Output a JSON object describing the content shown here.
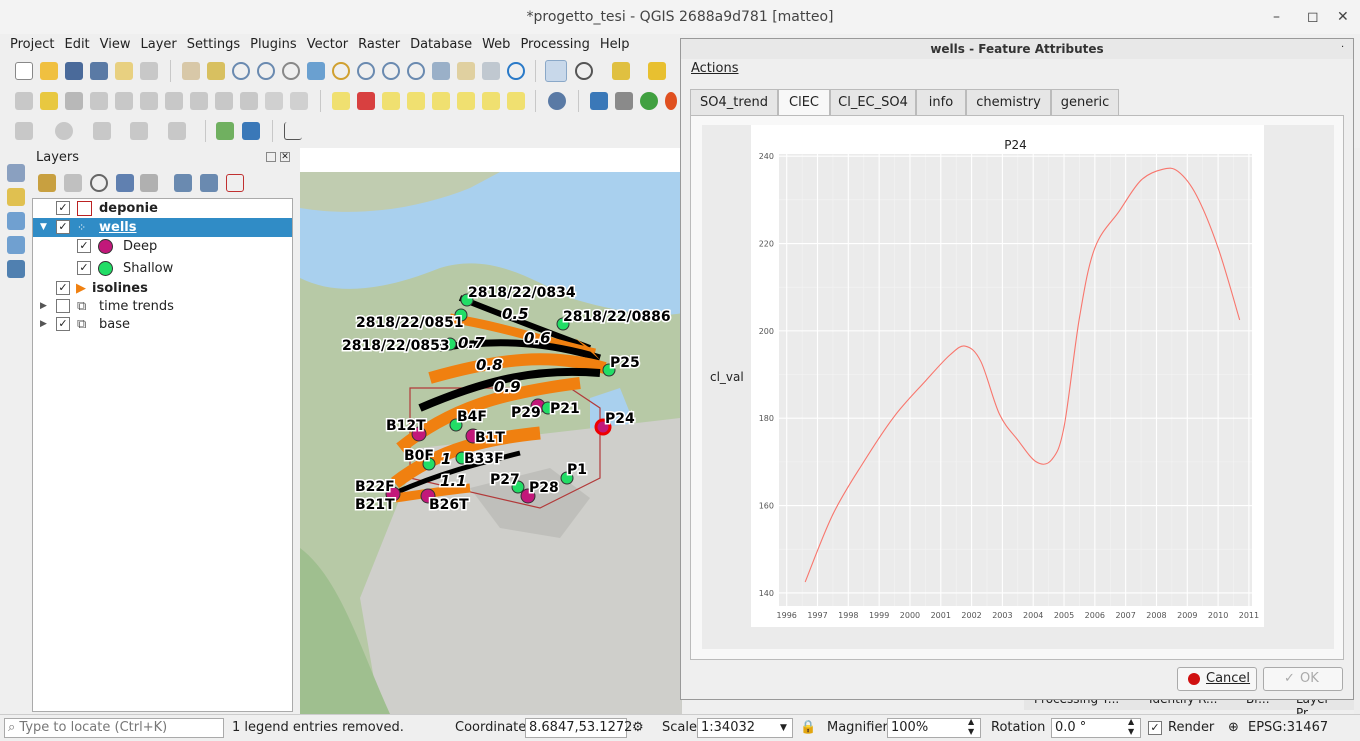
{
  "window": {
    "title": "*progetto_tesi - QGIS 2688a9d781 [matteo]",
    "min": "–",
    "max": "◻",
    "close": "✕"
  },
  "menubar": [
    "Project",
    "Edit",
    "View",
    "Layer",
    "Settings",
    "Plugins",
    "Vector",
    "Raster",
    "Database",
    "Web",
    "Processing",
    "Help"
  ],
  "layers_panel": {
    "title": "Layers",
    "items": [
      {
        "label": "deponie",
        "checked": "✓"
      },
      {
        "label": "wells",
        "checked": "✓"
      },
      {
        "label": "Deep",
        "checked": "✓",
        "color": "#c2187a"
      },
      {
        "label": "Shallow",
        "checked": "✓",
        "color": "#22dd66"
      },
      {
        "label": "isolines",
        "checked": "✓"
      },
      {
        "label": "time trends",
        "checked": ""
      },
      {
        "label": "base",
        "checked": "✓"
      }
    ]
  },
  "map": {
    "wells": [
      {
        "label": "2818/22/0834"
      },
      {
        "label": "2818/22/0851"
      },
      {
        "label": "2818/22/0853"
      },
      {
        "label": "2818/22/0886"
      },
      {
        "label": "P25"
      },
      {
        "label": "P29"
      },
      {
        "label": "P21"
      },
      {
        "label": "P24"
      },
      {
        "label": "B12T"
      },
      {
        "label": "B4F"
      },
      {
        "label": "B1T"
      },
      {
        "label": "B0F"
      },
      {
        "label": "B33F"
      },
      {
        "label": "B22F"
      },
      {
        "label": "B21T"
      },
      {
        "label": "B26T"
      },
      {
        "label": "P27"
      },
      {
        "label": "P28"
      },
      {
        "label": "P1"
      }
    ],
    "isolines": [
      "0.5",
      "0.6",
      "0.7",
      "0.8",
      "0.9",
      "1",
      "1.1"
    ]
  },
  "dialog": {
    "title": "wells - Feature Attributes",
    "actions": "Actions",
    "tabs": [
      "SO4_trend",
      "ClEC",
      "Cl_EC_SO4",
      "info",
      "chemistry",
      "generic"
    ],
    "selected_tab": "ClEC",
    "cancel": "Cancel",
    "ok": "OK"
  },
  "chart_data": {
    "type": "line",
    "title": "P24",
    "xlabel": "",
    "ylabel": "cl_val",
    "x_ticks": [
      "1996",
      "1997",
      "1998",
      "1999",
      "2000",
      "2001",
      "2002",
      "2003",
      "2004",
      "2005",
      "2006",
      "2007",
      "2008",
      "2009",
      "2010",
      "2011"
    ],
    "y_ticks": [
      "140",
      "160",
      "180",
      "200",
      "220",
      "240"
    ],
    "xlim": [
      1995.75,
      2011.1
    ],
    "ylim": [
      137,
      240.5
    ],
    "series": [
      {
        "name": "P24",
        "color": "#f8766d",
        "x": [
          1996.6,
          1997.5,
          1998.5,
          1999.5,
          2000.5,
          2001.3,
          2001.8,
          2002.3,
          2002.9,
          2003.5,
          2004.1,
          2004.6,
          2005.0,
          2005.5,
          2006.0,
          2006.8,
          2007.5,
          2008.2,
          2008.7,
          2009.3,
          2010.0,
          2010.7
        ],
        "y": [
          142.5,
          158,
          170,
          180.5,
          188.5,
          194.5,
          196.5,
          193,
          181,
          175,
          170,
          170.5,
          178,
          203,
          219,
          227.5,
          234.5,
          237,
          236.5,
          231,
          219,
          202.5
        ]
      }
    ]
  },
  "statusbar": {
    "locate_placeholder": "Type to locate (Ctrl+K)",
    "message": "1 legend entries removed.",
    "coordinate_label": "Coordinate",
    "coordinate_value": "8.6847,53.1272",
    "scale_label": "Scale",
    "scale_value": "1:34032",
    "magnifier_label": "Magnifier",
    "magnifier_value": "100%",
    "rotation_label": "Rotation",
    "rotation_value": "0.0 °",
    "render_label": "Render",
    "crs": "EPSG:31467"
  },
  "background_tabs": [
    "Processing T...",
    "Identify R...",
    "Br...",
    "Layer Pr..."
  ]
}
